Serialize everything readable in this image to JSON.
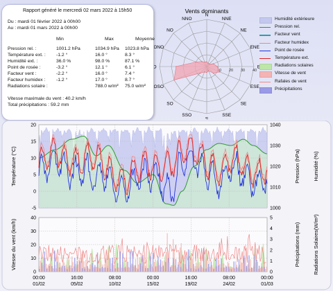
{
  "report": {
    "title": "Rapport généré le mercredi 02 mars 2022 à 15h50",
    "period_from": "Du : mardi 01 février 2022 à 00h00",
    "period_to": "Au : mardi 01 mars 2022 à 00h00",
    "headers": [
      "Min",
      "Max",
      "Moyenne"
    ],
    "rows": [
      {
        "label": "Pression rel. :",
        "min": "1001.2 hPa",
        "max": "1034.9 hPa",
        "avg": "1023.8 hPa"
      },
      {
        "label": "Température ext. :",
        "min": "-1.2 °",
        "max": "16.0 °",
        "avg": "8.3 °"
      },
      {
        "label": "Humidité ext. :",
        "min": "36.0 %",
        "max": "98.0 %",
        "avg": "87.1 %"
      },
      {
        "label": "Point de rosée :",
        "min": "-3.2 °",
        "max": "12.1 °",
        "avg": "6.1 °"
      },
      {
        "label": "Facteur vent :",
        "min": "-2.2 °",
        "max": "16.0 °",
        "avg": "7.4 °"
      },
      {
        "label": "Facteur humidex :",
        "min": "-1.2 °",
        "max": "17.0 °",
        "avg": "8.7 °"
      },
      {
        "label": "Radiations solaire :",
        "min": "",
        "max": "788.0 w/m²",
        "avg": "75.0 w/m²"
      }
    ],
    "max_wind": "Vitesse maximale du vent : 40.2 km/h",
    "total_precip": "Total précipitations : 59.2 mm"
  },
  "chart_data": [
    {
      "type": "radar",
      "title": "Vents dominants",
      "directions": [
        "N",
        "NNE",
        "NE",
        "ENE",
        "E",
        "ESE",
        "SE",
        "SSE",
        "S",
        "SSO",
        "SO",
        "OSO",
        "O",
        "ONO",
        "NO",
        "NNO"
      ],
      "values": [
        4,
        3,
        3,
        6,
        9,
        12,
        8,
        4,
        5,
        5,
        8,
        30,
        26,
        10,
        6,
        4
      ],
      "rlim": [
        0,
        40
      ],
      "ticks": [
        0,
        10,
        20,
        30,
        40
      ]
    },
    {
      "type": "line",
      "x_ticks": [
        {
          "time": "00:00",
          "date": "01/02"
        },
        {
          "time": "16:00",
          "date": "05/02"
        },
        {
          "time": "08:00",
          "date": "10/02"
        },
        {
          "time": "00:00",
          "date": "15/02"
        },
        {
          "time": "16:00",
          "date": "19/02"
        },
        {
          "time": "08:00",
          "date": "24/02"
        },
        {
          "time": "00:00",
          "date": "01/03"
        }
      ],
      "y_left": {
        "label": "Température (°C)",
        "ylim": [
          -5,
          20
        ],
        "ticks": [
          -5,
          0,
          5,
          10,
          15,
          20
        ]
      },
      "y_right": {
        "label": "Pression (hPa)",
        "ylim": [
          1000,
          1040
        ],
        "ticks": [
          1000,
          1010,
          1020,
          1030,
          1040
        ]
      },
      "y_right2": {
        "label": "Humidité (%)"
      },
      "series": [
        {
          "name": "Humidité extérieure",
          "color": "#c4c8ef",
          "approx_range": [
            36,
            98
          ]
        },
        {
          "name": "Pression rel.",
          "color": "#2e9a2e",
          "approx_range": [
            1001.2,
            1034.9
          ]
        },
        {
          "name": "Température ext.",
          "color": "#e02020",
          "approx_range": [
            -1.2,
            16.0
          ]
        },
        {
          "name": "Point de rosée",
          "color": "#2233dd",
          "approx_range": [
            -3.2,
            12.1
          ]
        },
        {
          "name": "Facteur humidex",
          "color": "#f08888",
          "approx_range": [
            -1.2,
            17.0
          ]
        }
      ]
    },
    {
      "type": "bar",
      "y_left": {
        "label": "Vitesse du vent (km/h)",
        "ylim": [
          0,
          40
        ],
        "ticks": [
          0,
          10,
          20,
          30,
          40
        ]
      },
      "y_right": {
        "label": "Précipitations (mm)",
        "ylim": [
          0,
          5
        ],
        "ticks": [
          0,
          1,
          2,
          3,
          4,
          5
        ]
      },
      "y_right2": {
        "label": "Radiations Solaires(W/m²)"
      },
      "series": [
        {
          "name": "Vitesse de vent",
          "color": "#f2b8b0",
          "approx_range": [
            0,
            40.2
          ]
        },
        {
          "name": "Rafales de vent",
          "color": "#f5a0a0"
        },
        {
          "name": "Précipitations",
          "color": "#9a9ae6",
          "total": 59.2
        },
        {
          "name": "Radiations solaires",
          "color": "#bde6a8",
          "approx_range": [
            0,
            788
          ]
        }
      ]
    }
  ],
  "legend": [
    {
      "label": "Humidité extérieure",
      "color": "#c4c8ef",
      "kind": "box"
    },
    {
      "label": "Pression rel.",
      "color": "#2e9a2e",
      "kind": "line"
    },
    {
      "label": "Facteur vent",
      "color": "#28a0b0",
      "kind": "line"
    },
    {
      "label": "Facteur humidex",
      "color": "#f08888",
      "kind": "line"
    },
    {
      "label": "Point de rosée",
      "color": "#2233dd",
      "kind": "line"
    },
    {
      "label": "Température ext.",
      "color": "#e02020",
      "kind": "line"
    },
    {
      "label": "Radiations solaires",
      "color": "#bde6a8",
      "kind": "box"
    },
    {
      "label": "Vitesse de vent",
      "color": "#f4b4b4",
      "kind": "box"
    },
    {
      "label": "Rafales de vent",
      "color": "#f08888",
      "kind": "line"
    },
    {
      "label": "Précipitations",
      "color": "#9a9ae6",
      "kind": "box"
    }
  ]
}
